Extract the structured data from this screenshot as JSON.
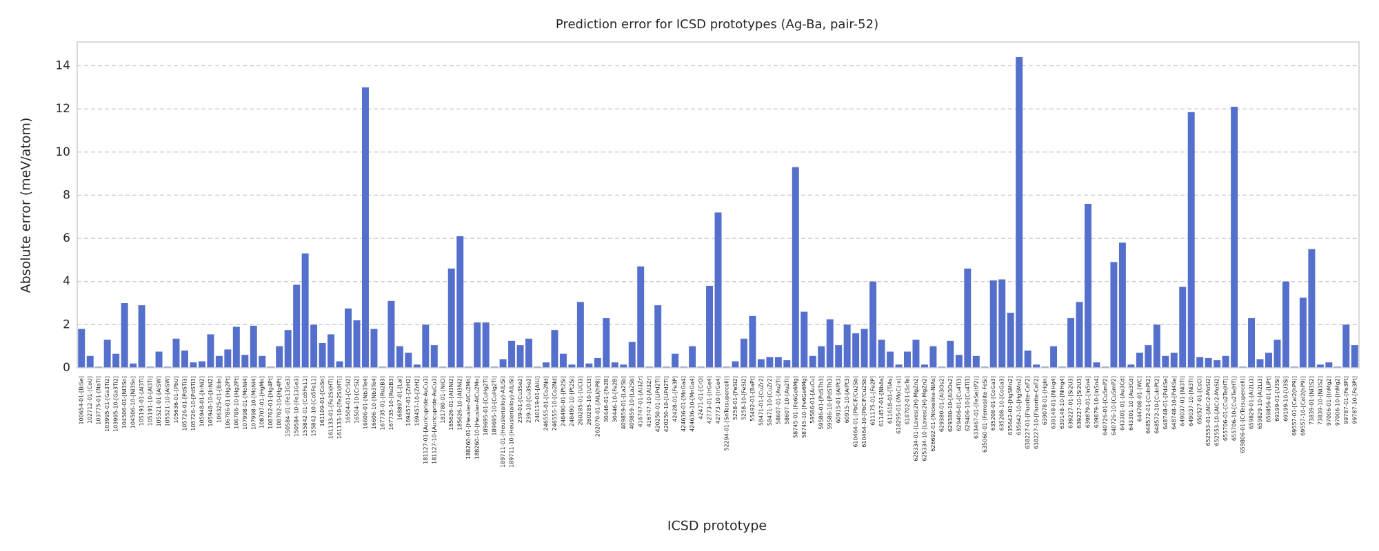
{
  "chart_data": {
    "type": "bar",
    "title": "Prediction error for ICSD prototypes (Ag-Ba, pair-52)",
    "xlabel": "ICSD prototype",
    "ylabel": "Absolute error (meV/atom)",
    "color": "#5470cc",
    "grid": true,
    "ylim": [
      0,
      15.1
    ],
    "yticks": [
      0,
      2,
      4,
      6,
      8,
      10,
      12,
      14
    ],
    "categories": [
      "100654-01-[BiSe]",
      "102712-01-[CoU]",
      "103775-01-[NaTl]",
      "103995-01-[Ga3Ti2]",
      "103995-10-[Ga3Ti2]",
      "104506-01-[Ni3Sn]",
      "104506-10-[Ni3Sn]",
      "105191-01-[Al3Ti]",
      "105191-10-[Al3Ti]",
      "105521-01-[AlSW]",
      "105521-10-[AlSW]",
      "105636-01-[PbU]",
      "105726-01-[PdSTi3]",
      "105726-10-[PdSTi3]",
      "105948-01-[InNi2]",
      "105948-10-[InNi2]",
      "106325-01-[BiIn]",
      "106786-01-[Hg2Pt]",
      "106786-10-[Hg2Pt]",
      "107998-01-[MoNi4]",
      "107998-10-[MoNi4]",
      "108707-01-[HgMn]",
      "108762-01-[Hg4Pt]",
      "108762-10-[Hg4Pt]",
      "150584-01-[Fe13Ge3]",
      "150584-10-[Fe13Ge3]",
      "155842-01-[Co5Fe11]",
      "155842-10-[Co5Fe11]",
      "161109-01-[CoSn]",
      "161133-01-[Fe2Si(HT)]",
      "161133-10-[Fe2Si(HT)]",
      "16504-01-[CrSi2]",
      "16504-10-[CrSi2]",
      "16606-01-[Nb3Te4]",
      "16606-10-[Nb3Te4]",
      "167735-01-[Ru2B3]",
      "167735-10-[Ru2B3]",
      "168897-01-[LaI]",
      "169457-01-[ZrH2]",
      "169457-10-[ZrH2]",
      "181127-01-[Auricupride-AuCu3]",
      "181127-10-[Auricupride-AuCu3]",
      "181780-01-[NiCl]",
      "185626-01-[Al3Ni2]",
      "185626-10-[Al3Ni2]",
      "188260-01-[Heusler-AlCu2Mn]",
      "188260-10-[Heusler-AlCu2Mn]",
      "189695-01-[CuHg2Ti]",
      "189695-10-[CuHg2Ti]",
      "189711-01-[Heusler(alloy)-AlLiSi]",
      "189711-10-[Heusler(alloy)-AlLiSi]",
      "239-01-[Cu3Se2]",
      "239-10-[Cu3Se2]",
      "240119-01-[AlLi]",
      "246555-01-[Co2Nd]",
      "246555-10-[Co2Nd]",
      "248490-01-[Pt2Si]",
      "248490-10-[Pt2Si]",
      "260285-01-[UCl3]",
      "260285-10-[UCl3]",
      "262070-01-[AlLi(hP8)]",
      "30446-01-[Fe2B]",
      "30446-10-[Fe2B]",
      "409859-01-[La2Sb]",
      "409859-10-[La2Sb]",
      "416747-01-[Al3Zr]",
      "416747-10-[Al3Zr]",
      "420250-01-[LiPd2Tl]",
      "420250-10-[LiPd2Tl]",
      "42428-01-[Fe3P]",
      "424636-01-[MnGa4]",
      "424636-10-[MnGa4]",
      "42471-01-[CrO]",
      "42773-01-[IrGe4]",
      "42773-10-[IrGe4]",
      "52294-01-[SnTe(supercell)]",
      "5258-01-[FeSi2]",
      "5258-10-[FeSi2]",
      "55492-01-[BaPt]",
      "58471-01-[CuZr2]",
      "58471-10-[CuZr2]",
      "58607-01-[Au2Ti]",
      "58607-10-[Au2Ti]",
      "58745-01-[Fe6Ge6Mg]",
      "58745-10-[Fe6Ge6Mg]",
      "59586-01-[AuCu]",
      "59586-01-[PdSTh3]",
      "59586-10-[PdSTh3]",
      "60915-01-[AlPt3]",
      "60915-10-[AlPt3]",
      "610464-01-[PbClF/Cu2Sb]",
      "610464-10-[PbClF/Cu2Sb]",
      "611175-01-[Fe2P]",
      "611457-01-[NbAs]",
      "611618-01-[TiAs]",
      "618295-01-[MoC(-x)]",
      "618702-01-[ScTe]",
      "625334-01-[Laves(2H)-MgZn2]",
      "625334-10-[Laves(2H)-MgZn2]",
      "626692-01-[Nickeline-NiAs]",
      "629380-01-[Al3Os2]",
      "629380-10-[Al3Os2]",
      "629406-01-[Cu4Ti3]",
      "629406-10-[Cu4Ti3]",
      "633467-01-[FeSe(tP2)]",
      "635060-01-[Ferrosilite-FeSi]",
      "635208-01-[CoGa3]",
      "635208-10-[CoGa3]",
      "635642-01-[HgSMn2]",
      "635642-10-[HgSMn2]",
      "638227-01-[Fluorite-CaF2]",
      "638227-10-[Fluorite-CaF2]",
      "639078-01-[HgIn]",
      "639148-01-[NiHg4]",
      "639148-10-[NiHg4]",
      "639227-01-[Si2U3]",
      "639227-10-[Si2U3]",
      "639879-01-[InSn4]",
      "639879-10-[InSn4]",
      "640726-01-[CuSmP2]",
      "640726-10-[CuSmP2]",
      "643301-01-[Au3Cd]",
      "643301-10-[Au3Cd]",
      "644708-01-[WC]",
      "648572-01-[CuInPt2]",
      "648572-10-[CuInPt2]",
      "648748-01-[Pd4Se]",
      "648748-10-[Pd4Se]",
      "649037-01-[Ni3Ti]",
      "649037-10-[Ni3Ti]",
      "650527-01-[CsCl]",
      "652553-01-[AlCr2-MoSi2]",
      "652553-10-[AlCr2-MoSi2]",
      "655706-01-[Cu2Te(HT)]",
      "655706-10-[Cu2Te(HT)]",
      "659806-01-[CrTe(supercell)]",
      "659829-01-[Al2Li3]",
      "659829-10-[Al2Li3]",
      "659856-01-[LiPt]",
      "69199-01-[U3Si]",
      "69199-10-[U3Si]",
      "69557-01-[CaI2(hP9)]",
      "69557-10-[CaI2(hP9)]",
      "73839-01-[Ni3S2]",
      "73839-10-[Ni3S2]",
      "97006-01-[InMg2]",
      "97006-10-[InMg2]",
      "99787-01-[Fe3Pt]",
      "99787-10-[Fe3Pt]"
    ],
    "values": [
      1.8,
      0.55,
      0.05,
      1.3,
      0.65,
      3.0,
      0.2,
      2.9,
      0.05,
      0.75,
      0.05,
      1.35,
      0.8,
      0.25,
      0.3,
      1.55,
      0.55,
      0.85,
      1.9,
      0.6,
      1.95,
      0.55,
      0.05,
      1.0,
      1.75,
      3.85,
      5.3,
      2.0,
      1.15,
      1.55,
      0.3,
      2.75,
      2.2,
      13.0,
      1.8,
      0.05,
      3.1,
      1.0,
      0.7,
      0.15,
      2.0,
      1.05,
      0.05,
      4.6,
      6.1,
      0.05,
      2.1,
      2.1,
      0.05,
      0.4,
      1.25,
      1.05,
      1.35,
      0.05,
      0.25,
      1.75,
      0.65,
      0.15,
      3.05,
      0.2,
      0.45,
      2.3,
      0.25,
      0.15,
      1.2,
      4.7,
      0.05,
      2.9,
      0.05,
      0.65,
      0.05,
      1.0,
      0.05,
      3.8,
      7.2,
      0.05,
      0.3,
      1.35,
      2.4,
      0.4,
      0.5,
      0.5,
      0.35,
      9.3,
      2.6,
      0.55,
      1.0,
      2.25,
      1.05,
      2.0,
      1.6,
      1.8,
      4.0,
      1.3,
      0.75,
      0.15,
      0.75,
      1.3,
      0.15,
      1.0,
      0.05,
      1.25,
      0.6,
      4.6,
      0.55,
      0.05,
      4.05,
      4.1,
      2.55,
      14.4,
      0.8,
      0.15,
      0.05,
      1.0,
      0.05,
      2.3,
      3.05,
      7.6,
      0.25,
      0.05,
      4.9,
      5.8,
      0.15,
      0.7,
      1.05,
      2.0,
      0.55,
      0.7,
      3.75,
      11.85,
      0.5,
      0.45,
      0.35,
      0.55,
      12.1,
      0.05,
      2.3,
      0.4,
      0.7,
      1.3,
      4.0,
      0.05,
      3.25,
      5.5,
      0.15,
      0.25,
      0.05,
      2.0,
      1.05
    ]
  }
}
